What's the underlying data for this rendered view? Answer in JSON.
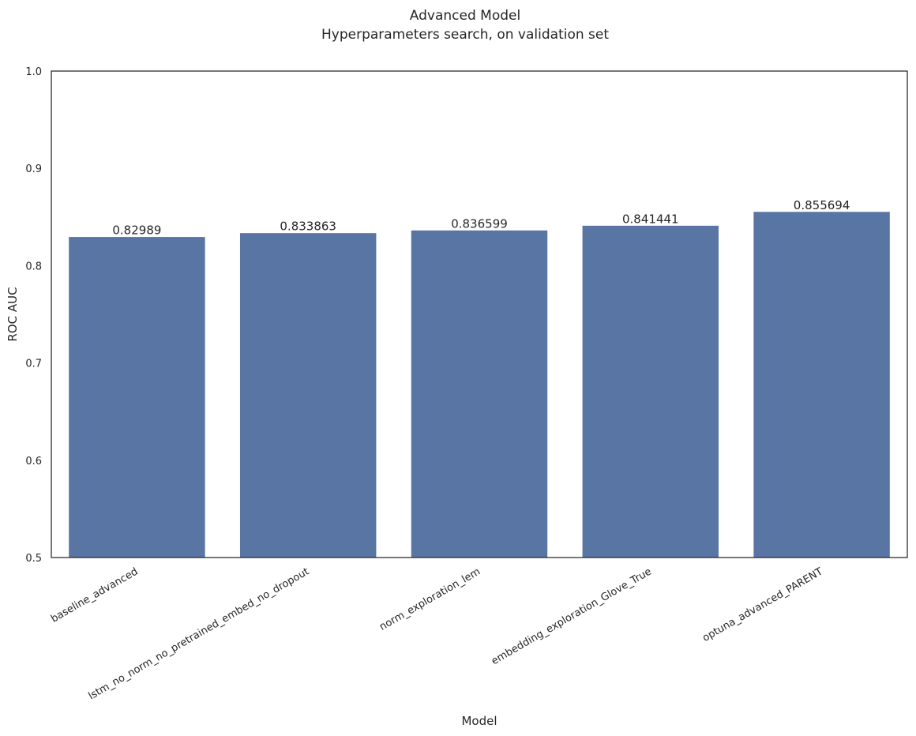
{
  "chart_data": {
    "type": "bar",
    "title": "Advanced Model",
    "subtitle": "Hyperparameters search, on validation set",
    "xlabel": "Model",
    "ylabel": "ROC AUC",
    "categories": [
      "baseline_advanced",
      "lstm_no_norm_no_pretrained_embed_no_dropout",
      "norm_exploration_lem",
      "embedding_exploration_Glove_True",
      "optuna_advanced_PARENT"
    ],
    "values": [
      0.82989,
      0.833863,
      0.836599,
      0.841441,
      0.855694
    ],
    "data_labels": [
      "0.82989",
      "0.833863",
      "0.836599",
      "0.841441",
      "0.855694"
    ],
    "ylim": [
      0.5,
      1.0
    ],
    "yticks": [
      0.5,
      0.6,
      0.7,
      0.8,
      0.9,
      1.0
    ],
    "ytick_labels": [
      "0.5",
      "0.6",
      "0.7",
      "0.8",
      "0.9",
      "1.0"
    ],
    "grid": false,
    "legend": "none",
    "colors": {
      "bar": "#5975a4",
      "bar_edge": "#ffffff",
      "axes": "#262626",
      "text": "#262626",
      "background": "#ffffff"
    }
  }
}
